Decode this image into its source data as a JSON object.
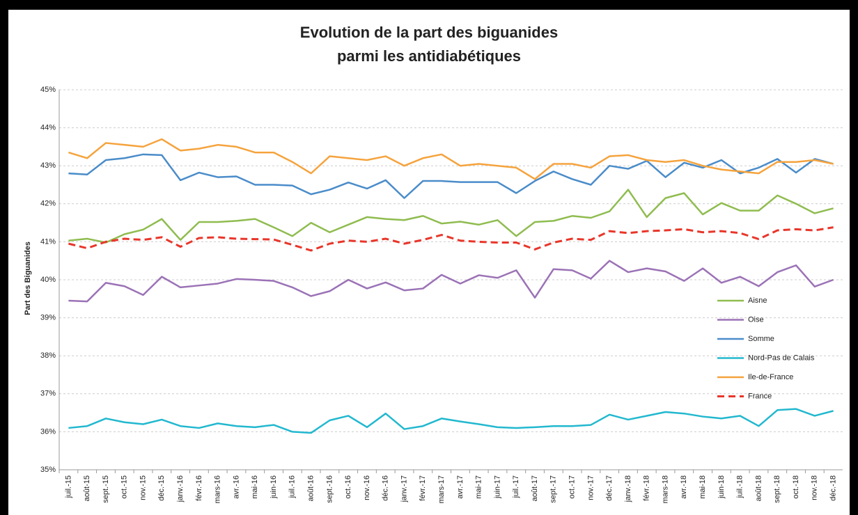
{
  "chart_data": {
    "type": "line",
    "title": [
      "Evolution de la part des biguanides",
      "parmi les antidiabétiques"
    ],
    "y_label": "Part des Biguanides",
    "categories": [
      "juil.-15",
      "août-15",
      "sept.-15",
      "oct.-15",
      "nov.-15",
      "déc.-15",
      "janv.-16",
      "févr.-16",
      "mars-16",
      "avr.-16",
      "mai-16",
      "juin-16",
      "juil.-16",
      "août-16",
      "sept.-16",
      "oct.-16",
      "nov.-16",
      "déc.-16",
      "janv.-17",
      "févr.-17",
      "mars-17",
      "avr.-17",
      "mai-17",
      "juin-17",
      "juil.-17",
      "août-17",
      "sept.-17",
      "oct.-17",
      "nov.-17",
      "déc.-17",
      "janv.-18",
      "févr.-18",
      "mars-18",
      "avr.-18",
      "mai-18",
      "juin-18",
      "juil.-18",
      "août-18",
      "sept.-18",
      "oct.-18",
      "nov.-18",
      "déc.-18"
    ],
    "ylim": [
      35,
      45
    ],
    "yticks": [
      {
        "value": 35,
        "label": "35%"
      },
      {
        "value": 36,
        "label": "36%"
      },
      {
        "value": 37,
        "label": "37%"
      },
      {
        "value": 38,
        "label": "38%"
      },
      {
        "value": 39,
        "label": "39%"
      },
      {
        "value": 40,
        "label": "40%"
      },
      {
        "value": 41,
        "label": "41%"
      },
      {
        "value": 42,
        "label": "42%"
      },
      {
        "value": 43,
        "label": "43%"
      },
      {
        "value": 44,
        "label": "44%"
      },
      {
        "value": 45,
        "label": "45%"
      }
    ],
    "grid": true,
    "legend": "right",
    "series": [
      {
        "name": "Aisne",
        "color": "#8fbc4f",
        "values": [
          41.03,
          41.08,
          40.98,
          41.2,
          41.32,
          41.6,
          41.05,
          41.52,
          41.52,
          41.55,
          41.6,
          41.38,
          41.15,
          41.5,
          41.25,
          41.45,
          41.65,
          41.6,
          41.57,
          41.68,
          41.48,
          41.53,
          41.45,
          41.57,
          41.15,
          41.52,
          41.55,
          41.68,
          41.63,
          41.8,
          42.37,
          41.65,
          42.15,
          42.28,
          41.72,
          42.02,
          41.82,
          41.82,
          42.22,
          42.0,
          41.75,
          41.88
        ]
      },
      {
        "name": "Oise",
        "color": "#9b72b6",
        "values": [
          39.45,
          39.43,
          39.92,
          39.83,
          39.6,
          40.08,
          39.8,
          39.85,
          39.9,
          40.02,
          40.0,
          39.97,
          39.8,
          39.57,
          39.7,
          40.0,
          39.77,
          39.93,
          39.72,
          39.77,
          40.13,
          39.9,
          40.12,
          40.05,
          40.25,
          39.53,
          40.28,
          40.25,
          40.03,
          40.5,
          40.2,
          40.3,
          40.22,
          39.97,
          40.3,
          39.92,
          40.08,
          39.83,
          40.2,
          40.38,
          39.82,
          40.0
        ]
      },
      {
        "name": "Somme",
        "color": "#4a8cc9",
        "values": [
          42.8,
          42.77,
          43.15,
          43.2,
          43.3,
          43.28,
          42.62,
          42.82,
          42.7,
          42.72,
          42.5,
          42.5,
          42.48,
          42.25,
          42.37,
          42.56,
          42.4,
          42.62,
          42.15,
          42.6,
          42.6,
          42.57,
          42.57,
          42.57,
          42.28,
          42.6,
          42.85,
          42.65,
          42.5,
          43.0,
          42.92,
          43.13,
          42.7,
          43.08,
          42.95,
          43.15,
          42.8,
          42.95,
          43.18,
          42.82,
          43.18,
          43.05
        ]
      },
      {
        "name": "Nord-Pas de Calais",
        "color": "#22b8cf",
        "values": [
          36.1,
          36.15,
          36.35,
          36.25,
          36.2,
          36.32,
          36.15,
          36.1,
          36.22,
          36.15,
          36.12,
          36.18,
          36.0,
          35.97,
          36.3,
          36.42,
          36.12,
          36.48,
          36.07,
          36.15,
          36.35,
          36.27,
          36.2,
          36.12,
          36.1,
          36.12,
          36.15,
          36.15,
          36.18,
          36.45,
          36.32,
          36.42,
          36.52,
          36.48,
          36.4,
          36.35,
          36.42,
          36.15,
          36.57,
          36.6,
          36.42,
          36.55
        ]
      },
      {
        "name": "Ile-de-France",
        "color": "#f5a33d",
        "values": [
          43.35,
          43.2,
          43.6,
          43.55,
          43.5,
          43.7,
          43.4,
          43.45,
          43.55,
          43.5,
          43.35,
          43.35,
          43.1,
          42.8,
          43.25,
          43.2,
          43.15,
          43.25,
          43.0,
          43.2,
          43.3,
          43.0,
          43.05,
          43.0,
          42.95,
          42.65,
          43.05,
          43.05,
          42.95,
          43.25,
          43.28,
          43.15,
          43.1,
          43.15,
          43.0,
          42.9,
          42.85,
          42.8,
          43.1,
          43.1,
          43.15,
          43.05
        ]
      },
      {
        "name": "France",
        "color": "#e8362a",
        "dashed": true,
        "values": [
          40.95,
          40.83,
          41.0,
          41.08,
          41.05,
          41.12,
          40.87,
          41.1,
          41.12,
          41.08,
          41.07,
          41.06,
          40.92,
          40.77,
          40.95,
          41.03,
          41.0,
          41.08,
          40.95,
          41.05,
          41.18,
          41.03,
          41.0,
          40.98,
          40.98,
          40.8,
          40.98,
          41.08,
          41.05,
          41.28,
          41.23,
          41.28,
          41.3,
          41.33,
          41.25,
          41.28,
          41.23,
          41.07,
          41.3,
          41.33,
          41.3,
          41.38
        ]
      }
    ]
  }
}
